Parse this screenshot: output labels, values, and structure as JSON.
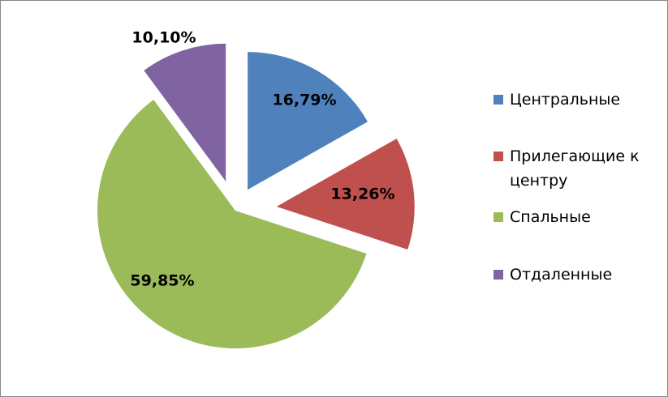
{
  "chart_data": {
    "type": "pie",
    "title": "",
    "exploded": true,
    "legend_position": "right",
    "slices": [
      {
        "label": "Центральные",
        "value": 16.79,
        "display": "16,79%",
        "color": "#4F81BD",
        "legend_lines": [
          "Центральные"
        ]
      },
      {
        "label": "Прилегающие к центру",
        "value": 13.26,
        "display": "13,26%",
        "color": "#C0504D",
        "legend_lines": [
          "Прилегающие к",
          "центру"
        ]
      },
      {
        "label": "Спальные",
        "value": 59.85,
        "display": "59,85%",
        "color": "#9BBB59",
        "legend_lines": [
          "Спальные"
        ]
      },
      {
        "label": "Отдаленные",
        "value": 10.1,
        "display": "10,10%",
        "color": "#8064A2",
        "legend_lines": [
          "Отдаленные"
        ]
      }
    ]
  }
}
